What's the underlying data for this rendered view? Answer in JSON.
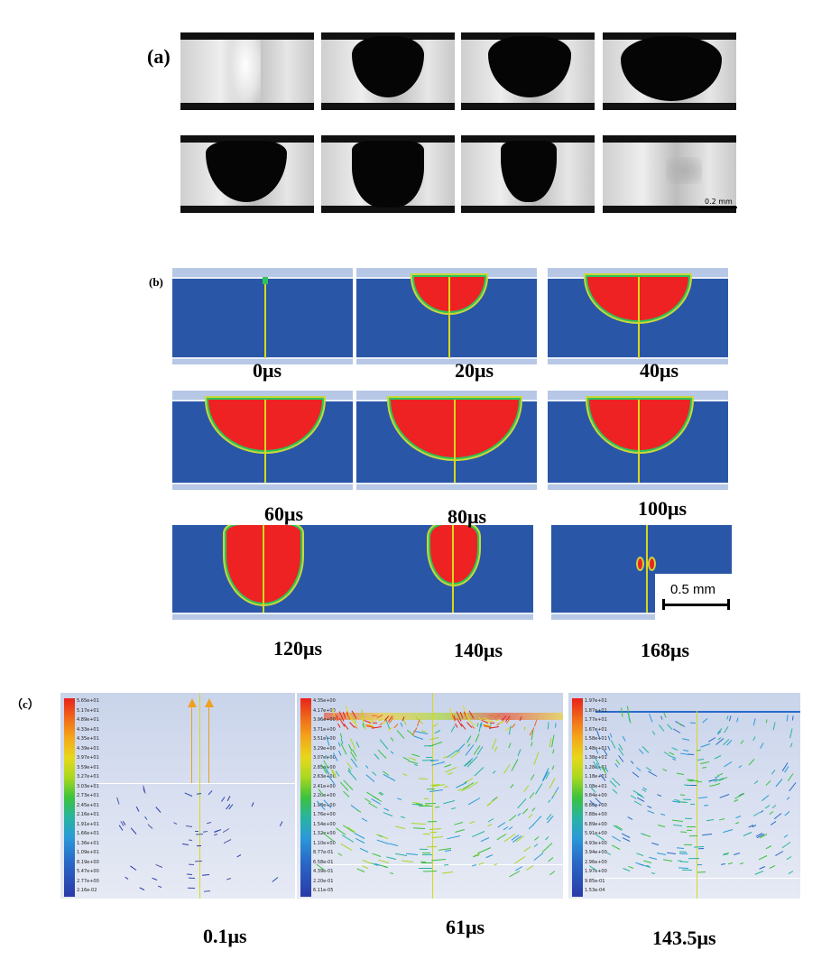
{
  "panel_a": {
    "label": "(a)",
    "scale_bar": "0.2 mm"
  },
  "panel_b": {
    "label": "(b)",
    "times": [
      "0μs",
      "20μs",
      "40μs",
      "60μs",
      "80μs",
      "100μs",
      "120μs",
      "140μs",
      "168μs"
    ],
    "scale_bar": "0.5 mm"
  },
  "panel_c": {
    "label": "（c）",
    "times": [
      "0.1μs",
      "61μs",
      "143.5μs"
    ],
    "legend_1": [
      "5.65e+01",
      "5.17e+01",
      "4.89e+01",
      "4.33e+01",
      "4.35e+01",
      "4.39e+01",
      "3.97e+01",
      "3.59e+01",
      "3.27e+01",
      "3.03e+01",
      "2.73e+01",
      "2.45e+01",
      "2.16e+01",
      "1.91e+01",
      "1.66e+01",
      "1.36e+01",
      "1.09e+01",
      "8.19e+00",
      "5.47e+00",
      "2.77e+00",
      "2.16e-02"
    ],
    "legend_2": [
      "4.35e+00",
      "4.17e+00",
      "3.96e+00",
      "3.71e+00",
      "3.51e+00",
      "3.29e+00",
      "3.07e+00",
      "2.85e+00",
      "2.63e+00",
      "2.41e+00",
      "2.20e+00",
      "1.98e+00",
      "1.76e+00",
      "1.54e+00",
      "1.32e+00",
      "1.10e+00",
      "8.77e-01",
      "6.58e-01",
      "4.39e-01",
      "2.20e-01",
      "6.11e-05"
    ],
    "legend_3": [
      "1.97e+01",
      "1.87e+01",
      "1.77e+01",
      "1.67e+01",
      "1.58e+01",
      "1.48e+01",
      "1.38e+01",
      "1.28e+01",
      "1.18e+01",
      "1.08e+01",
      "9.84e+00",
      "8.86e+00",
      "7.88e+00",
      "6.89e+00",
      "5.91e+00",
      "4.93e+00",
      "3.94e+00",
      "2.96e+00",
      "1.97e+00",
      "9.85e-01",
      "1.53e-04"
    ]
  }
}
